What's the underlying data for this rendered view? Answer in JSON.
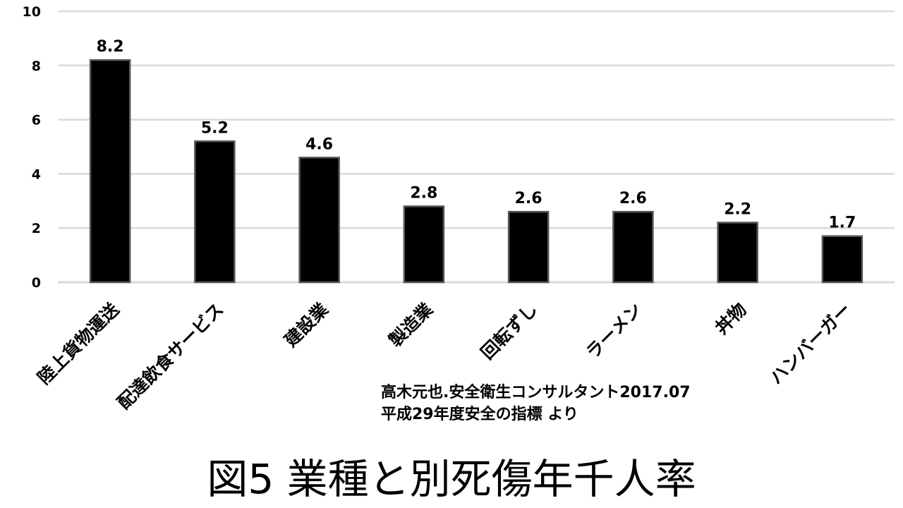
{
  "chart_data": {
    "type": "bar",
    "categories": [
      "陸上貨物運送",
      "配達飲食サービス",
      "建設業",
      "製造業",
      "回転ずし",
      "ラーメン",
      "丼物",
      "ハンバーガー"
    ],
    "values": [
      8.2,
      5.2,
      4.6,
      2.8,
      2.6,
      2.6,
      2.2,
      1.7
    ],
    "value_labels": [
      "8.2",
      "5.2",
      "4.6",
      "2.8",
      "2.6",
      "2.6",
      "2.2",
      "1.7"
    ],
    "yticks": [
      "0",
      "2",
      "4",
      "6",
      "8",
      "10"
    ],
    "ylim": [
      0,
      10
    ],
    "grid": true,
    "bar_color": "#000000",
    "bar_edge_color": "#555555",
    "grid_color": "#d9d9d9"
  },
  "source_lines": [
    "高木元也.安全衛生コンサルタント2017.07",
    "平成29年度安全の指標  より"
  ],
  "caption": "図5  業種と別死傷年千人率"
}
